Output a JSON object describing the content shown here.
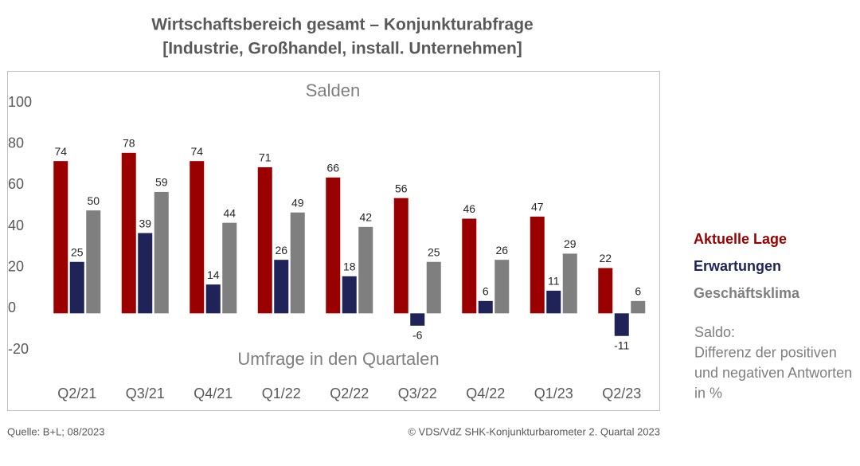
{
  "chart_data": {
    "type": "bar",
    "title": "Wirtschaftsbereich gesamt – Konjunkturabfrage",
    "subtitle": "[Industrie, Großhandel, install. Unternehmen]",
    "y_label": "Salden",
    "x_label": "Umfrage in den Quartalen",
    "categories": [
      "Q2/21",
      "Q3/21",
      "Q4/21",
      "Q1/22",
      "Q2/22",
      "Q3/22",
      "Q4/22",
      "Q1/23",
      "Q2/23"
    ],
    "series": [
      {
        "name": "Aktuelle Lage",
        "color": "#9b0000",
        "values": [
          74,
          78,
          74,
          71,
          66,
          56,
          46,
          47,
          22
        ]
      },
      {
        "name": "Erwartungen",
        "color": "#1f2358",
        "values": [
          25,
          39,
          14,
          26,
          18,
          -6,
          6,
          11,
          -11
        ]
      },
      {
        "name": "Geschäftsklima",
        "color": "#7f7f7f",
        "values": [
          50,
          59,
          44,
          49,
          42,
          25,
          26,
          29,
          6
        ]
      }
    ],
    "ylim": [
      -20,
      100
    ],
    "yticks": [
      -20,
      0,
      20,
      40,
      60,
      80,
      100
    ],
    "grid": false,
    "legend": "right",
    "note": [
      "Saldo:",
      "Differenz der positiven",
      "und negativen Antworten",
      "in %"
    ],
    "source": "Quelle: B+L; 08/2023",
    "copyright": "© VDS/VdZ SHK-Konjunkturbarometer 2. Quartal 2023"
  }
}
